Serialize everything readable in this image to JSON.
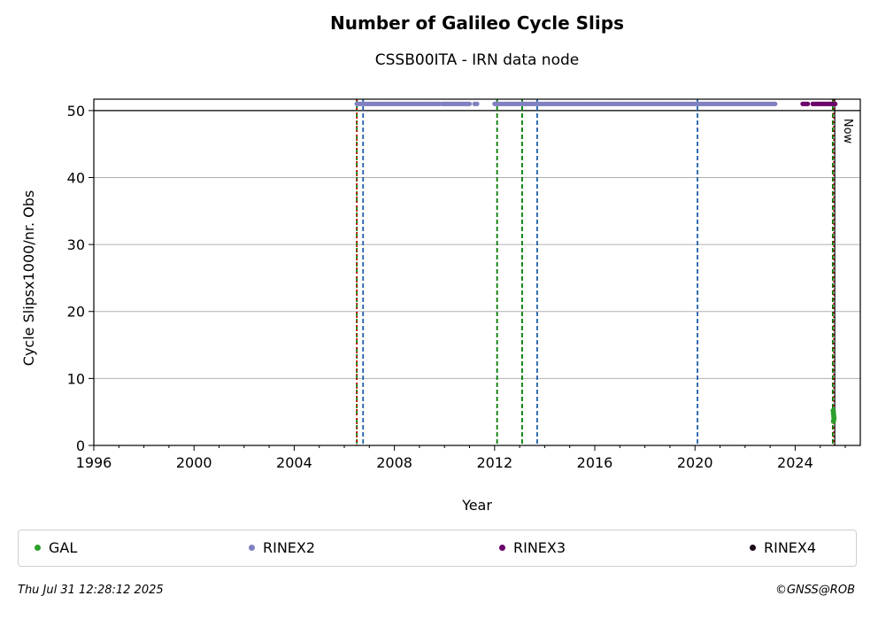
{
  "header": {
    "title": "Number of Galileo Cycle Slips",
    "subtitle": "CSSB00ITA - IRN data node"
  },
  "chart_data": {
    "type": "scatter",
    "xlabel": "Year",
    "ylabel": "Cycle Slipsx1000/nr. Obs",
    "x_ticks": [
      1996,
      2000,
      2004,
      2008,
      2012,
      2016,
      2020,
      2024
    ],
    "y_ticks": [
      0,
      10,
      20,
      30,
      40,
      50
    ],
    "xlim": [
      1996,
      2026.6
    ],
    "ylim": [
      0,
      51.7
    ],
    "grid": "horizontal",
    "cap_line_value": 50,
    "now_label": "Now",
    "now_year": 2025.58,
    "series": [
      {
        "name": "GAL",
        "color": "#2ca02c",
        "points": [
          [
            2025.52,
            5.2
          ],
          [
            2025.53,
            4.8
          ],
          [
            2025.54,
            4.4
          ],
          [
            2025.55,
            4.0
          ],
          [
            2025.53,
            3.6
          ]
        ]
      },
      {
        "name": "RINEX2",
        "color": "#8080c0",
        "ranges": [
          [
            2006.5,
            2009.8
          ],
          [
            2009.9,
            2011.0
          ],
          [
            2011.2,
            2011.3
          ],
          [
            2012.0,
            2020.8
          ],
          [
            2020.8,
            2023.2
          ]
        ],
        "value": 51
      },
      {
        "name": "RINEX3",
        "color": "#6b006b",
        "ranges": [
          [
            2024.3,
            2024.5
          ],
          [
            2024.7,
            2025.6
          ]
        ],
        "value": 51
      },
      {
        "name": "RINEX4",
        "color": "#1a0a1a",
        "ranges": [],
        "value": 51
      }
    ],
    "event_lines": [
      {
        "year": 2006.5,
        "color": "#007a00",
        "style": "dashed"
      },
      {
        "year": 2006.5,
        "color": "#cc0000",
        "style": "dotted"
      },
      {
        "year": 2006.75,
        "color": "#1f5fa8",
        "style": "dashed"
      },
      {
        "year": 2012.1,
        "color": "#007a00",
        "style": "dashed"
      },
      {
        "year": 2013.1,
        "color": "#007a00",
        "style": "dashed"
      },
      {
        "year": 2013.7,
        "color": "#1f5fa8",
        "style": "dashed"
      },
      {
        "year": 2020.1,
        "color": "#1f5fa8",
        "style": "dashed"
      },
      {
        "year": 2025.5,
        "color": "#007a00",
        "style": "dashed"
      },
      {
        "year": 2025.55,
        "color": "#cc0000",
        "style": "dotted"
      }
    ]
  },
  "legend": {
    "items": [
      {
        "label": "GAL",
        "color": "#2ca02c"
      },
      {
        "label": "RINEX2",
        "color": "#8080c0"
      },
      {
        "label": "RINEX3",
        "color": "#6b006b"
      },
      {
        "label": "RINEX4",
        "color": "#1a0a1a"
      }
    ]
  },
  "footer": {
    "timestamp": "Thu Jul 31 12:28:12 2025",
    "credit": "©GNSS@ROB"
  }
}
